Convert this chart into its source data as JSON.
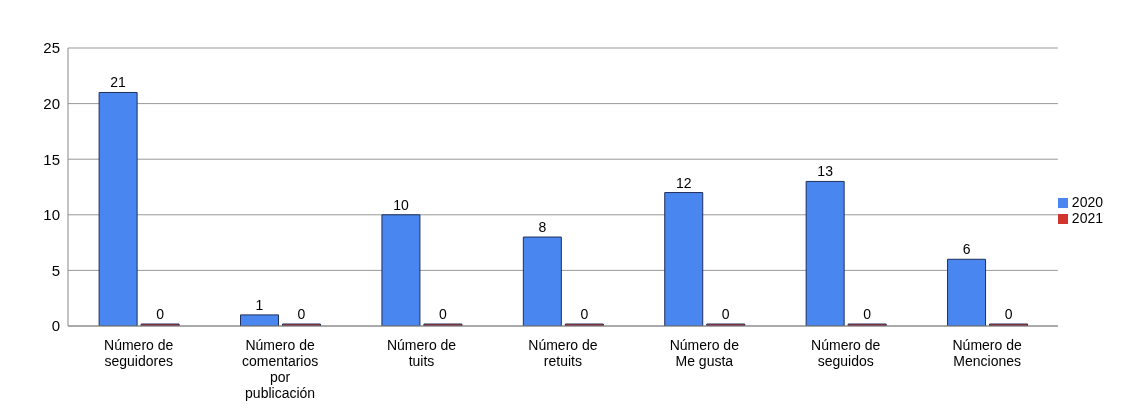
{
  "chart_data": {
    "type": "bar",
    "categories": [
      "Número de seguidores",
      "Número de comentarios por publicación",
      "Número de tuits",
      "Número de retuits",
      "Número de Me gusta",
      "Número de seguidos",
      "Número de Menciones"
    ],
    "series": [
      {
        "name": "2020",
        "color": "#4a86f0",
        "values": [
          21,
          1,
          10,
          8,
          12,
          13,
          6
        ]
      },
      {
        "name": "2021",
        "color": "#d0342c",
        "values": [
          0,
          0,
          0,
          0,
          0,
          0,
          0
        ]
      }
    ],
    "ylim": [
      0,
      25
    ],
    "yticks": [
      0,
      5,
      10,
      15,
      20,
      25
    ],
    "grid": "y",
    "legend": "right",
    "data_labels": true
  }
}
